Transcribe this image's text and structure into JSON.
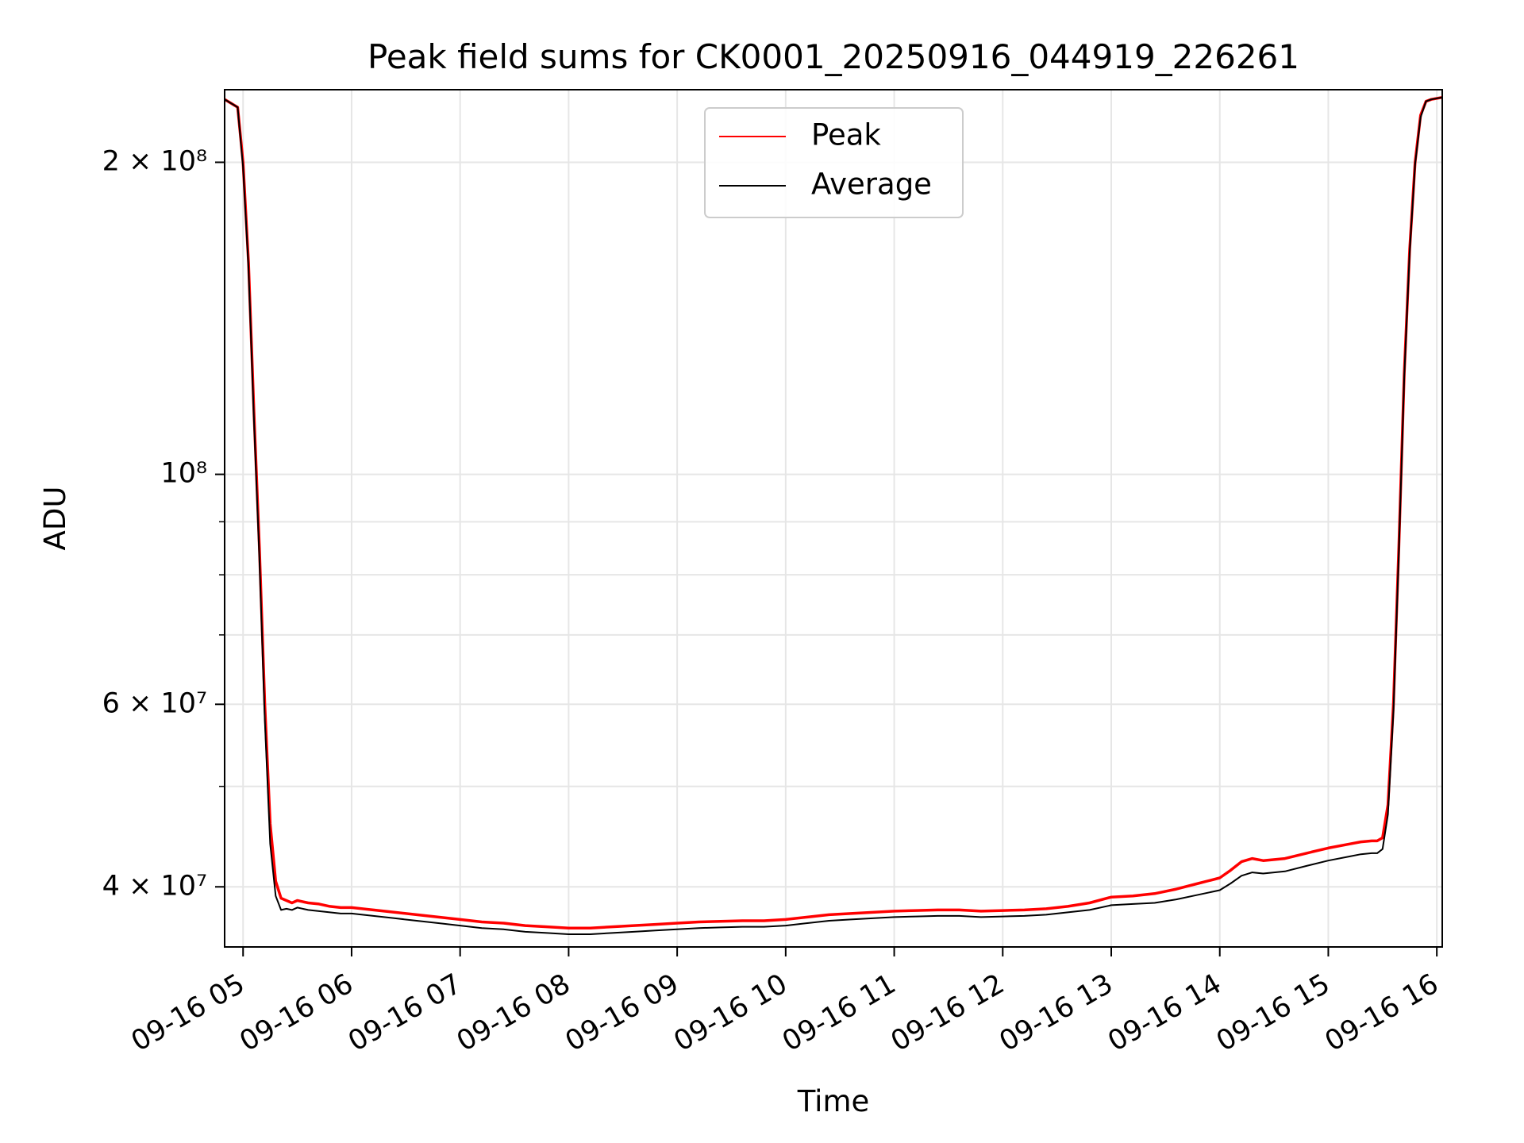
{
  "chart_data": {
    "type": "line",
    "title": "Peak field sums for CK0001_20250916_044919_226261",
    "xlabel": "Time",
    "ylabel": "ADU",
    "yscale": "log",
    "ylim": [
      35000000,
      235000000
    ],
    "xlim_hours": [
      4.83,
      16.05
    ],
    "x_ticks": [
      {
        "hour": 5,
        "label": "09-16 05"
      },
      {
        "hour": 6,
        "label": "09-16 06"
      },
      {
        "hour": 7,
        "label": "09-16 07"
      },
      {
        "hour": 8,
        "label": "09-16 08"
      },
      {
        "hour": 9,
        "label": "09-16 09"
      },
      {
        "hour": 10,
        "label": "09-16 10"
      },
      {
        "hour": 11,
        "label": "09-16 11"
      },
      {
        "hour": 12,
        "label": "09-16 12"
      },
      {
        "hour": 13,
        "label": "09-16 13"
      },
      {
        "hour": 14,
        "label": "09-16 14"
      },
      {
        "hour": 15,
        "label": "09-16 15"
      },
      {
        "hour": 16,
        "label": "09-16 16"
      }
    ],
    "y_ticks": [
      {
        "value": 200000000,
        "label": "2 × 10⁸"
      },
      {
        "value": 100000000,
        "label": "10⁸"
      },
      {
        "value": 60000000,
        "label": "6 × 10⁷"
      },
      {
        "value": 40000000,
        "label": "4 × 10⁷"
      }
    ],
    "y_minor_ticks": [
      50000000,
      70000000,
      80000000,
      90000000
    ],
    "legend_position": "upper center",
    "series": [
      {
        "name": "Peak",
        "color": "#ff0000",
        "x_hours": [
          4.83,
          4.95,
          5.0,
          5.05,
          5.1,
          5.15,
          5.2,
          5.25,
          5.3,
          5.35,
          5.4,
          5.45,
          5.5,
          5.6,
          5.7,
          5.8,
          5.9,
          6.0,
          6.2,
          6.4,
          6.6,
          6.8,
          7.0,
          7.2,
          7.4,
          7.6,
          7.8,
          8.0,
          8.2,
          8.4,
          8.6,
          8.8,
          9.0,
          9.2,
          9.4,
          9.6,
          9.8,
          10.0,
          10.2,
          10.4,
          10.6,
          10.8,
          11.0,
          11.2,
          11.4,
          11.6,
          11.8,
          12.0,
          12.2,
          12.4,
          12.6,
          12.8,
          13.0,
          13.2,
          13.4,
          13.6,
          13.8,
          14.0,
          14.1,
          14.2,
          14.3,
          14.4,
          14.6,
          14.8,
          15.0,
          15.2,
          15.3,
          15.4,
          15.45,
          15.5,
          15.55,
          15.6,
          15.65,
          15.7,
          15.75,
          15.8,
          15.85,
          15.9,
          15.95,
          16.05
        ],
        "values": [
          230000000,
          226000000,
          200000000,
          160000000,
          115000000,
          85000000,
          60000000,
          46000000,
          40500000,
          39000000,
          38800000,
          38600000,
          38800000,
          38600000,
          38500000,
          38300000,
          38200000,
          38200000,
          38000000,
          37800000,
          37600000,
          37400000,
          37200000,
          37000000,
          36900000,
          36700000,
          36600000,
          36500000,
          36500000,
          36600000,
          36700000,
          36800000,
          36900000,
          37000000,
          37050000,
          37100000,
          37100000,
          37200000,
          37400000,
          37600000,
          37700000,
          37800000,
          37900000,
          37950000,
          38000000,
          38000000,
          37900000,
          37950000,
          38000000,
          38100000,
          38300000,
          38600000,
          39100000,
          39200000,
          39400000,
          39800000,
          40300000,
          40800000,
          41500000,
          42300000,
          42600000,
          42400000,
          42600000,
          43100000,
          43600000,
          44000000,
          44200000,
          44300000,
          44300000,
          44600000,
          48000000,
          60000000,
          85000000,
          125000000,
          165000000,
          200000000,
          222000000,
          229000000,
          230000000,
          231000000
        ]
      },
      {
        "name": "Average",
        "color": "#000000",
        "x_hours": [
          4.83,
          4.95,
          5.0,
          5.05,
          5.1,
          5.15,
          5.2,
          5.25,
          5.3,
          5.35,
          5.4,
          5.45,
          5.5,
          5.6,
          5.7,
          5.8,
          5.9,
          6.0,
          6.2,
          6.4,
          6.6,
          6.8,
          7.0,
          7.2,
          7.4,
          7.6,
          7.8,
          8.0,
          8.2,
          8.4,
          8.6,
          8.8,
          9.0,
          9.2,
          9.4,
          9.6,
          9.8,
          10.0,
          10.2,
          10.4,
          10.6,
          10.8,
          11.0,
          11.2,
          11.4,
          11.6,
          11.8,
          12.0,
          12.2,
          12.4,
          12.6,
          12.8,
          13.0,
          13.2,
          13.4,
          13.6,
          13.8,
          14.0,
          14.1,
          14.2,
          14.3,
          14.4,
          14.6,
          14.8,
          15.0,
          15.2,
          15.3,
          15.4,
          15.45,
          15.5,
          15.55,
          15.6,
          15.65,
          15.7,
          15.75,
          15.8,
          15.85,
          15.9,
          15.95,
          16.05
        ],
        "values": [
          230000000,
          226000000,
          198000000,
          158000000,
          113000000,
          83000000,
          58000000,
          44000000,
          39200000,
          38000000,
          38100000,
          38000000,
          38200000,
          38000000,
          37900000,
          37800000,
          37700000,
          37700000,
          37500000,
          37300000,
          37100000,
          36900000,
          36700000,
          36500000,
          36400000,
          36200000,
          36100000,
          36000000,
          36000000,
          36100000,
          36200000,
          36300000,
          36400000,
          36500000,
          36550000,
          36600000,
          36600000,
          36700000,
          36900000,
          37100000,
          37200000,
          37300000,
          37400000,
          37450000,
          37500000,
          37500000,
          37400000,
          37450000,
          37500000,
          37600000,
          37800000,
          38000000,
          38400000,
          38500000,
          38600000,
          38900000,
          39300000,
          39700000,
          40300000,
          41000000,
          41300000,
          41200000,
          41400000,
          41900000,
          42400000,
          42800000,
          43000000,
          43100000,
          43100000,
          43500000,
          47000000,
          59000000,
          84000000,
          124000000,
          164000000,
          199000000,
          221000000,
          229000000,
          230000000,
          231000000
        ]
      }
    ]
  }
}
